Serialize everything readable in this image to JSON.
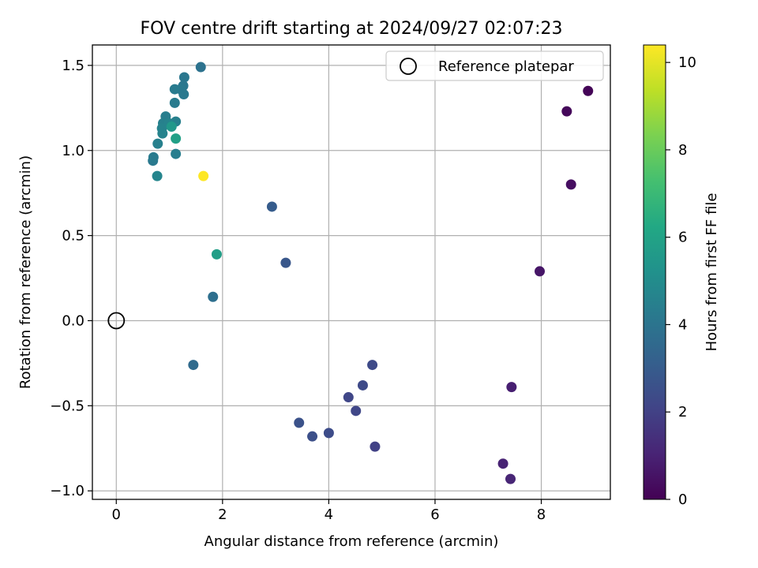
{
  "chart_data": {
    "type": "scatter",
    "title": "FOV centre drift starting at 2024/09/27 02:07:23",
    "xlabel": "Angular distance from reference (arcmin)",
    "ylabel": "Rotation from reference (arcmin)",
    "xlim": [
      -0.45,
      9.3
    ],
    "ylim": [
      -1.05,
      1.62
    ],
    "xticks": [
      0,
      2,
      4,
      6,
      8
    ],
    "xtick_labels": [
      "0",
      "2",
      "4",
      "6",
      "8"
    ],
    "yticks": [
      -1.0,
      -0.5,
      0.0,
      0.5,
      1.0,
      1.5
    ],
    "ytick_labels": [
      "−1.0",
      "−0.5",
      "0.0",
      "0.5",
      "1.0",
      "1.5"
    ],
    "grid": true,
    "legend": {
      "placement": "top-right",
      "entries": [
        "Reference platepar"
      ]
    },
    "colorbar": {
      "label": "Hours from first FF file",
      "colormap": "viridis",
      "range": [
        0,
        10.4
      ],
      "ticks": [
        0,
        2,
        4,
        6,
        8,
        10
      ],
      "tick_labels": [
        "0",
        "2",
        "4",
        "6",
        "8",
        "10"
      ]
    },
    "reference_point": {
      "name": "Reference platepar",
      "x": 0.0,
      "y": 0.0
    },
    "series": [
      {
        "points": [
          {
            "x": 8.88,
            "y": 1.35,
            "c": 0.1
          },
          {
            "x": 8.48,
            "y": 1.23,
            "c": 0.2
          },
          {
            "x": 8.56,
            "y": 0.8,
            "c": 0.4
          },
          {
            "x": 7.97,
            "y": 0.29,
            "c": 0.6
          },
          {
            "x": 7.44,
            "y": -0.39,
            "c": 0.9
          },
          {
            "x": 7.28,
            "y": -0.84,
            "c": 1.0
          },
          {
            "x": 7.42,
            "y": -0.93,
            "c": 1.1
          },
          {
            "x": 4.87,
            "y": -0.74,
            "c": 2.0
          },
          {
            "x": 4.51,
            "y": -0.53,
            "c": 2.2
          },
          {
            "x": 4.37,
            "y": -0.45,
            "c": 2.2
          },
          {
            "x": 4.64,
            "y": -0.38,
            "c": 2.3
          },
          {
            "x": 4.82,
            "y": -0.26,
            "c": 2.3
          },
          {
            "x": 4.0,
            "y": -0.66,
            "c": 2.4
          },
          {
            "x": 3.69,
            "y": -0.68,
            "c": 2.5
          },
          {
            "x": 3.44,
            "y": -0.6,
            "c": 2.6
          },
          {
            "x": 3.19,
            "y": 0.34,
            "c": 2.8
          },
          {
            "x": 2.93,
            "y": 0.67,
            "c": 3.0
          },
          {
            "x": 1.45,
            "y": -0.26,
            "c": 3.6
          },
          {
            "x": 1.82,
            "y": 0.14,
            "c": 3.8
          },
          {
            "x": 1.59,
            "y": 1.49,
            "c": 3.9
          },
          {
            "x": 1.28,
            "y": 1.43,
            "c": 4.1
          },
          {
            "x": 1.26,
            "y": 1.38,
            "c": 4.1
          },
          {
            "x": 1.21,
            "y": 1.36,
            "c": 4.2
          },
          {
            "x": 1.1,
            "y": 1.36,
            "c": 4.3
          },
          {
            "x": 1.27,
            "y": 1.33,
            "c": 4.2
          },
          {
            "x": 1.1,
            "y": 1.28,
            "c": 4.3
          },
          {
            "x": 0.93,
            "y": 1.2,
            "c": 4.4
          },
          {
            "x": 1.12,
            "y": 1.17,
            "c": 4.5
          },
          {
            "x": 0.88,
            "y": 1.16,
            "c": 4.5
          },
          {
            "x": 0.86,
            "y": 1.13,
            "c": 4.6
          },
          {
            "x": 0.99,
            "y": 1.16,
            "c": 4.6
          },
          {
            "x": 0.87,
            "y": 1.1,
            "c": 4.6
          },
          {
            "x": 0.78,
            "y": 1.04,
            "c": 4.5
          },
          {
            "x": 1.12,
            "y": 0.98,
            "c": 4.4
          },
          {
            "x": 0.7,
            "y": 0.96,
            "c": 4.3
          },
          {
            "x": 0.69,
            "y": 0.94,
            "c": 4.2
          },
          {
            "x": 0.77,
            "y": 0.85,
            "c": 4.7
          },
          {
            "x": 1.04,
            "y": 1.14,
            "c": 5.5
          },
          {
            "x": 1.12,
            "y": 1.07,
            "c": 5.9
          },
          {
            "x": 1.89,
            "y": 0.39,
            "c": 5.8
          },
          {
            "x": 1.64,
            "y": 0.85,
            "c": 10.4
          }
        ]
      }
    ]
  }
}
